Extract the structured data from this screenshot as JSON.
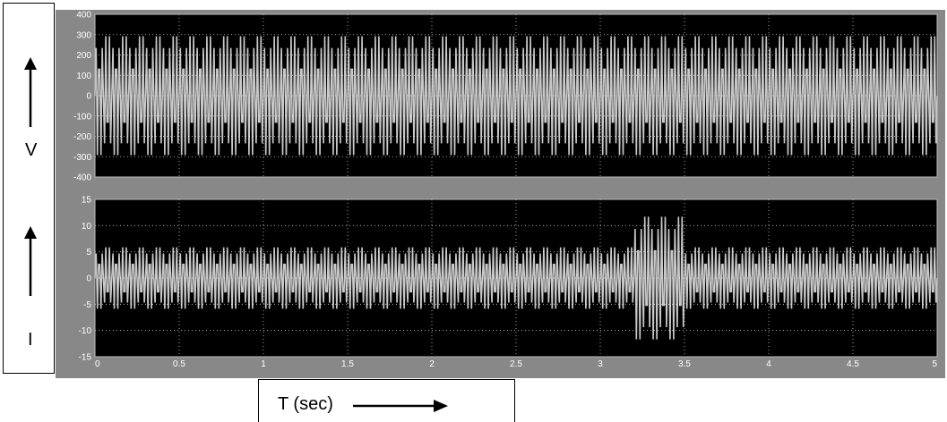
{
  "labels": {
    "voltage_symbol": "V",
    "current_symbol": "I",
    "time_axis": "T (sec)"
  },
  "colors": {
    "plot_background": "#000000",
    "signal": "#c8c8c8",
    "panel": "#888888",
    "tick_text": "#ffffff"
  },
  "chart_data": [
    {
      "type": "line",
      "title": "",
      "xlabel": "",
      "ylabel": "V",
      "xlim": [
        0,
        5
      ],
      "ylim": [
        -400,
        400
      ],
      "x_ticks": [
        "0",
        "0.5",
        "1",
        "1.5",
        "2",
        "2.5",
        "3",
        "3.5",
        "4",
        "4.5",
        "5"
      ],
      "y_ticks": [
        "400",
        "300",
        "200",
        "100",
        "0",
        "-100",
        "-200",
        "-300",
        "-400"
      ],
      "grid": true,
      "frequency_hz": 50,
      "segments": [
        {
          "t_start": 0,
          "t_end": 5,
          "amplitude": 300
        }
      ]
    },
    {
      "type": "line",
      "title": "",
      "xlabel": "T (sec)",
      "ylabel": "I",
      "xlim": [
        0,
        5
      ],
      "ylim": [
        -15,
        15
      ],
      "x_ticks": [
        "0",
        "0.5",
        "1",
        "1.5",
        "2",
        "2.5",
        "3",
        "3.5",
        "4",
        "4.5",
        "5"
      ],
      "y_ticks": [
        "15",
        "10",
        "5",
        "0",
        "-5",
        "-10",
        "-15"
      ],
      "grid": true,
      "frequency_hz": 50,
      "segments": [
        {
          "t_start": 0,
          "t_end": 3.2,
          "amplitude": 6
        },
        {
          "t_start": 3.2,
          "t_end": 3.5,
          "amplitude": 12
        },
        {
          "t_start": 3.5,
          "t_end": 5,
          "amplitude": 6
        }
      ]
    }
  ]
}
